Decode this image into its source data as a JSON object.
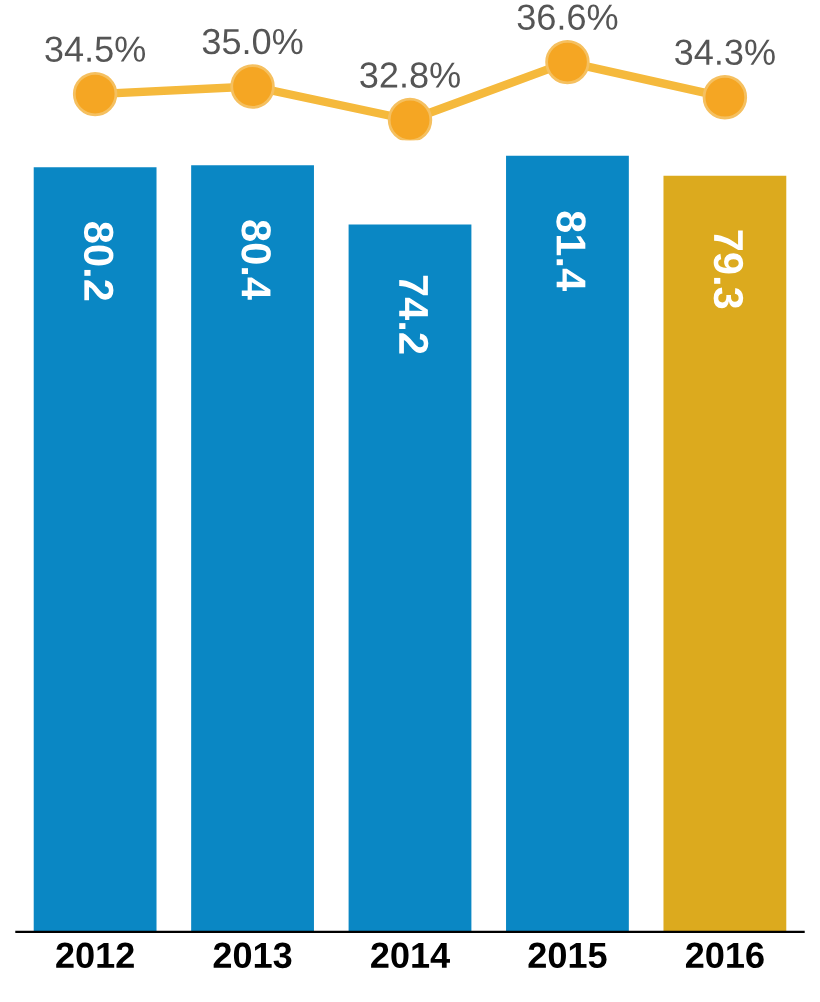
{
  "chart_data": [
    {
      "type": "line",
      "categories": [
        "2012",
        "2013",
        "2014",
        "2015",
        "2016"
      ],
      "tick_labels": false,
      "grid": false,
      "legend": false,
      "series": [
        {
          "color": "#f5b93c",
          "marker": "circle",
          "values": [
            34.5,
            35.0,
            32.8,
            36.6,
            34.3
          ],
          "value_labels": [
            "34.5%",
            "35.0%",
            "32.8%",
            "36.6%",
            "34.3%"
          ]
        }
      ]
    },
    {
      "type": "bar",
      "categories": [
        "2012",
        "2013",
        "2014",
        "2015",
        "2016"
      ],
      "tick_labels": "x",
      "grid": false,
      "legend": false,
      "data_labels": true,
      "series": [
        {
          "colors": [
            "#0a87c4",
            "#0a87c4",
            "#0a87c4",
            "#0a87c4",
            "#dcaa1e"
          ],
          "values": [
            80.2,
            80.4,
            74.2,
            81.4,
            79.3
          ]
        }
      ]
    }
  ]
}
